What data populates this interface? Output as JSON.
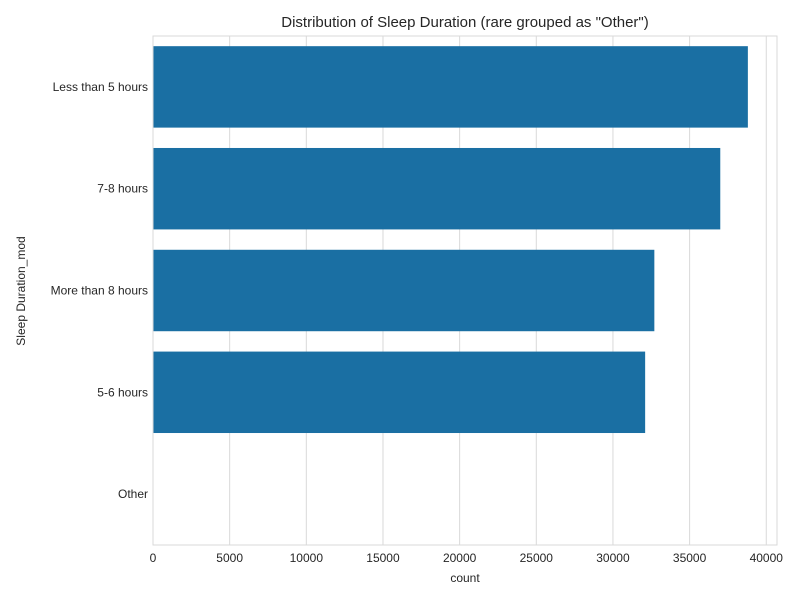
{
  "chart_data": {
    "type": "bar",
    "orientation": "horizontal",
    "title": "Distribution of Sleep Duration (rare grouped as \"Other\")",
    "xlabel": "count",
    "ylabel": "Sleep Duration_mod",
    "categories": [
      "Less than 5 hours",
      "7-8 hours",
      "More than 8 hours",
      "5-6 hours",
      "Other"
    ],
    "values": [
      38800,
      37000,
      32700,
      32100,
      0
    ],
    "xlim": [
      0,
      40700
    ],
    "xticks": [
      0,
      5000,
      10000,
      15000,
      20000,
      25000,
      30000,
      35000,
      40000
    ],
    "grid": true,
    "bar_color": "#1a6fa3",
    "grid_color": "#d9d9d9"
  }
}
